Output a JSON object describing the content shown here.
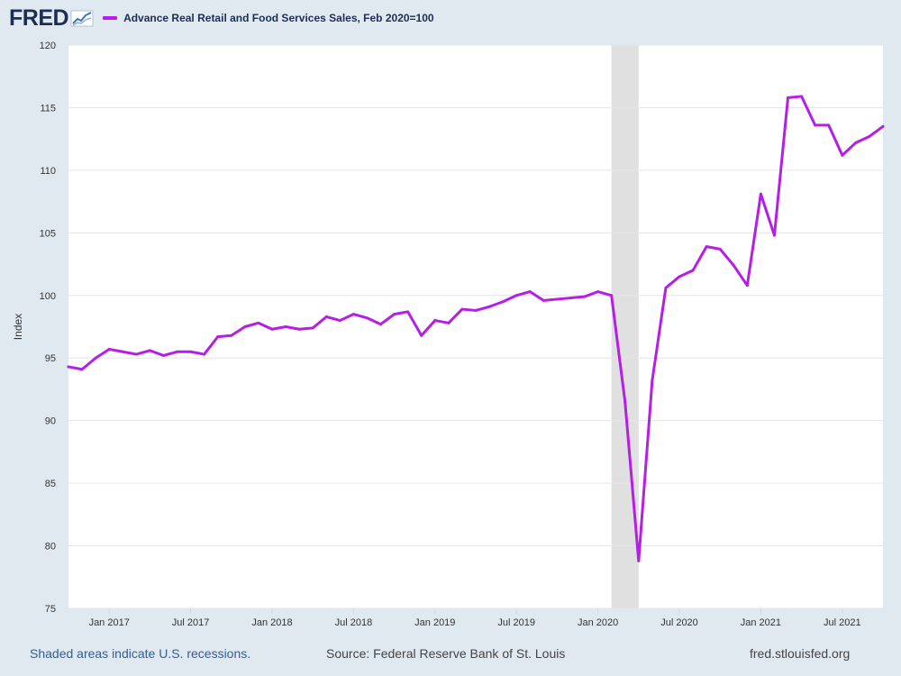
{
  "header": {
    "logo_text": "FRED",
    "series_label": "Advance Real Retail and Food Services Sales, Feb 2020=100"
  },
  "colors": {
    "series": "#b51ee6",
    "recession": "#e0e0e0",
    "plot_bg": "#ffffff",
    "page_bg": "#e1e9f0",
    "grid": "#e6e6e6",
    "text": "#333333",
    "brand": "#1c2e52"
  },
  "footer": {
    "recession_note": "Shaded areas indicate U.S. recessions.",
    "source": "Source: Federal Reserve Bank of St. Louis",
    "website": "fred.stlouisfed.org"
  },
  "chart_data": {
    "type": "line",
    "title": "Advance Real Retail and Food Services Sales, Feb 2020=100",
    "ylabel": "Index",
    "xlabel": "",
    "ylim": [
      75,
      120
    ],
    "xlim": [
      "2016-10",
      "2021-10"
    ],
    "yticks": [
      75,
      80,
      85,
      90,
      95,
      100,
      105,
      110,
      115,
      120
    ],
    "xticks": [
      {
        "date": "2017-01",
        "label": "Jan 2017"
      },
      {
        "date": "2017-07",
        "label": "Jul 2017"
      },
      {
        "date": "2018-01",
        "label": "Jan 2018"
      },
      {
        "date": "2018-07",
        "label": "Jul 2018"
      },
      {
        "date": "2019-01",
        "label": "Jan 2019"
      },
      {
        "date": "2019-07",
        "label": "Jul 2019"
      },
      {
        "date": "2020-01",
        "label": "Jan 2020"
      },
      {
        "date": "2020-07",
        "label": "Jul 2020"
      },
      {
        "date": "2021-01",
        "label": "Jan 2021"
      },
      {
        "date": "2021-07",
        "label": "Jul 2021"
      }
    ],
    "recessions": [
      {
        "start": "2020-02",
        "end": "2020-04"
      }
    ],
    "grid": true,
    "series": [
      {
        "name": "Advance Real Retail and Food Services Sales, Feb 2020=100",
        "x": [
          "2016-10",
          "2016-11",
          "2016-12",
          "2017-01",
          "2017-02",
          "2017-03",
          "2017-04",
          "2017-05",
          "2017-06",
          "2017-07",
          "2017-08",
          "2017-09",
          "2017-10",
          "2017-11",
          "2017-12",
          "2018-01",
          "2018-02",
          "2018-03",
          "2018-04",
          "2018-05",
          "2018-06",
          "2018-07",
          "2018-08",
          "2018-09",
          "2018-10",
          "2018-11",
          "2018-12",
          "2019-01",
          "2019-02",
          "2019-03",
          "2019-04",
          "2019-05",
          "2019-06",
          "2019-07",
          "2019-08",
          "2019-09",
          "2019-10",
          "2019-11",
          "2019-12",
          "2020-01",
          "2020-02",
          "2020-03",
          "2020-04",
          "2020-05",
          "2020-06",
          "2020-07",
          "2020-08",
          "2020-09",
          "2020-10",
          "2020-11",
          "2020-12",
          "2021-01",
          "2021-02",
          "2021-03",
          "2021-04",
          "2021-05",
          "2021-06",
          "2021-07",
          "2021-08",
          "2021-09",
          "2021-10"
        ],
        "values": [
          94.3,
          94.1,
          95.0,
          95.7,
          95.5,
          95.3,
          95.6,
          95.2,
          95.5,
          95.5,
          95.3,
          96.7,
          96.8,
          97.5,
          97.8,
          97.3,
          97.5,
          97.3,
          97.4,
          98.3,
          98.0,
          98.5,
          98.2,
          97.7,
          98.5,
          98.7,
          96.8,
          98.0,
          97.8,
          98.9,
          98.8,
          99.1,
          99.5,
          100.0,
          100.3,
          99.6,
          99.7,
          99.8,
          99.9,
          100.3,
          100.0,
          91.5,
          78.8,
          93.2,
          100.6,
          101.5,
          102.0,
          103.9,
          103.7,
          102.4,
          100.8,
          108.1,
          104.8,
          115.8,
          115.9,
          113.6,
          113.6,
          111.2,
          112.2,
          112.7,
          113.5
        ]
      }
    ]
  }
}
